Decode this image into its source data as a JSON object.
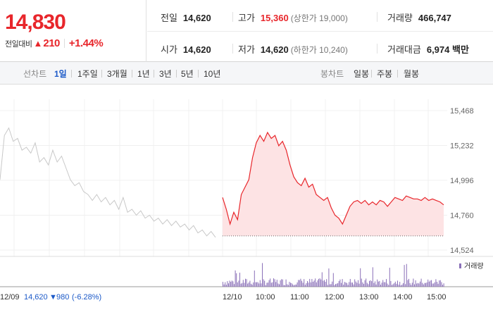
{
  "price": {
    "current": "14,830",
    "change_label": "전일대비",
    "change_icon": "up-triangle-icon",
    "change_value": "210",
    "change_pct": "+1.44%"
  },
  "stats": {
    "prev_close_label": "전일",
    "prev_close": "14,620",
    "high_label": "고가",
    "high": "15,360",
    "upper_limit": "(상한가 19,000)",
    "volume_label": "거래량",
    "volume": "466,747",
    "open_label": "시가",
    "open": "14,620",
    "low_label": "저가",
    "low": "14,620",
    "lower_limit": "(하한가 10,240)",
    "amount_label": "거래대금",
    "amount": "6,974 백만"
  },
  "tabs": {
    "line_label": "선차트",
    "line_items": [
      "1일",
      "1주일",
      "3개월",
      "1년",
      "3년",
      "5년",
      "10년"
    ],
    "active_line": "1일",
    "candle_label": "봉차트",
    "candle_items": [
      "일봉",
      "주봉",
      "월봉"
    ]
  },
  "chart_data": {
    "type": "line",
    "y_ticks": [
      "15,468",
      "15,232",
      "14,996",
      "14,760",
      "14,524"
    ],
    "ylim": [
      14524,
      15468
    ],
    "prev_day": {
      "date": "12/09",
      "close": "14,620",
      "change_icon": "down-triangle-icon",
      "change": "980",
      "change_pct": "(-6.28%)"
    },
    "today_date": "12/10",
    "x_ticks": [
      "10:00",
      "11:00",
      "12:00",
      "13:00",
      "14:00",
      "15:00"
    ],
    "volume_legend": "거래량",
    "prev_day_series": [
      15000,
      15300,
      15350,
      15260,
      15280,
      15200,
      15220,
      15180,
      15250,
      15120,
      15150,
      15100,
      15200,
      15120,
      15160,
      15080,
      15000,
      14960,
      14980,
      14920,
      14900,
      14860,
      14900,
      14850,
      14880,
      14830,
      14860,
      14800,
      14880,
      14780,
      14800,
      14760,
      14790,
      14740,
      14760,
      14720,
      14740,
      14700,
      14730,
      14690,
      14720,
      14680,
      14700,
      14660,
      14690,
      14640,
      14660,
      14620,
      14650,
      14610
    ],
    "today_series": [
      14880,
      14800,
      14700,
      14780,
      14730,
      14900,
      14950,
      15000,
      15150,
      15250,
      15300,
      15260,
      15320,
      15280,
      15300,
      15230,
      15260,
      15200,
      15100,
      15020,
      14980,
      14960,
      15010,
      14950,
      14970,
      14900,
      14880,
      14860,
      14880,
      14810,
      14760,
      14740,
      14700,
      14760,
      14820,
      14850,
      14860,
      14840,
      14860,
      14830,
      14850,
      14830,
      14860,
      14850,
      14820,
      14850,
      14880,
      14870,
      14860,
      14890,
      14880,
      14870,
      14870,
      14860,
      14880,
      14860,
      14870,
      14860,
      14850,
      14830
    ],
    "prev_close_value": 14620
  },
  "colors": {
    "up": "#e8262b",
    "down": "#1b59c8",
    "today_line": "#e8262b",
    "today_fill": "#fde3e4",
    "prev_line": "#c8c8c8",
    "volume_bar": "#8a70b8"
  }
}
